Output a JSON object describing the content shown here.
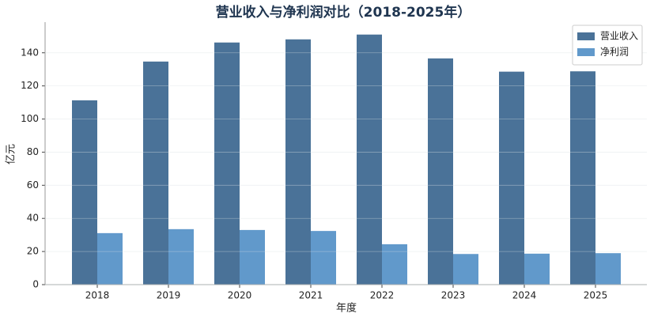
{
  "chart_data": {
    "type": "bar",
    "title": "营业收入与净利润对比（2018-2025年）",
    "x_label": "年度",
    "y_label": "亿元",
    "categories": [
      "2018",
      "2019",
      "2020",
      "2021",
      "2022",
      "2023",
      "2024",
      "2025"
    ],
    "series": [
      {
        "name": "营业收入",
        "color": "#4a7298",
        "values": [
          111.3,
          134.7,
          146.2,
          148.1,
          151,
          136.6,
          128.6,
          128.8
        ]
      },
      {
        "name": "净利润",
        "color": "#6199cb",
        "values": [
          31.1,
          33.5,
          33,
          32.4,
          24.4,
          18.5,
          18.7,
          19
        ]
      }
    ],
    "ylim": [
      0,
      158.5
    ],
    "yticks": [
      0,
      20,
      40,
      60,
      80,
      100,
      120,
      140
    ],
    "grid": true,
    "legend": "upper right"
  }
}
